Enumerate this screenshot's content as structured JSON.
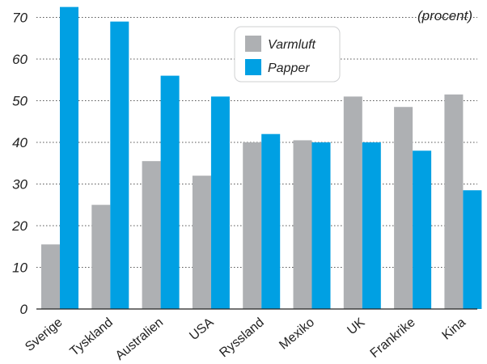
{
  "chart_data": {
    "type": "bar",
    "title": "",
    "xlabel": "",
    "ylabel": "",
    "unit": "(procent)",
    "categories": [
      "Sverige",
      "Tyskland",
      "Australien",
      "USA",
      "Ryssland",
      "Mexiko",
      "UK",
      "Frankrike",
      "Kina"
    ],
    "series": [
      {
        "name": "Varmluft",
        "color": "#aeb0b3",
        "values": [
          15.5,
          25,
          35.5,
          32,
          40,
          40.5,
          51,
          48.5,
          51.5
        ]
      },
      {
        "name": "Papper",
        "color": "#00a0e3",
        "values": [
          72.5,
          69,
          56,
          51,
          42,
          40,
          40,
          38,
          28.5
        ]
      }
    ],
    "yticks": [
      0,
      10,
      20,
      30,
      40,
      50,
      60,
      70
    ],
    "ylim": [
      0,
      74
    ],
    "grid": true,
    "legend_position": "top-center"
  }
}
